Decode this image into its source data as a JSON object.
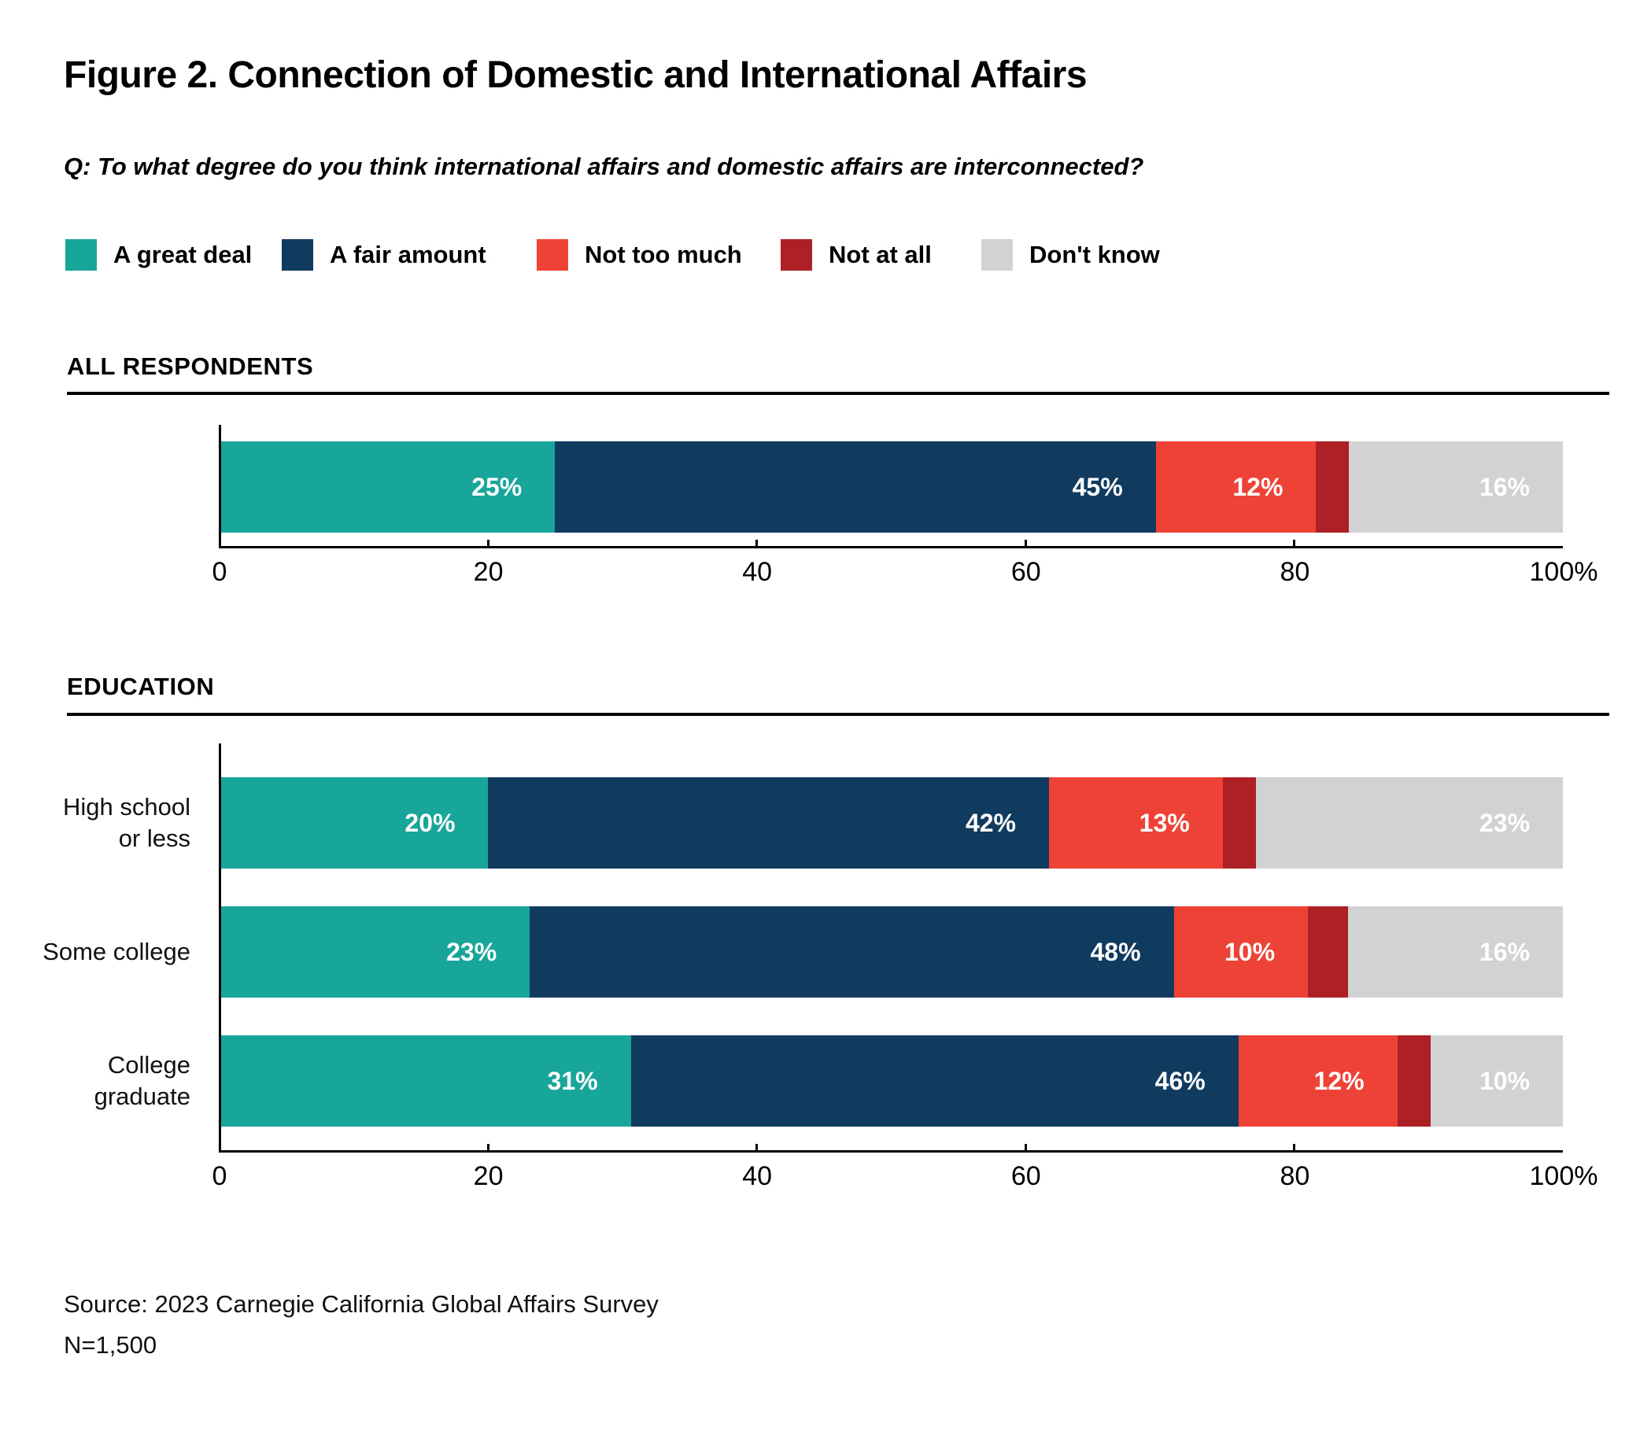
{
  "page": {
    "title": "Figure 2. Connection of Domestic and International Affairs",
    "question": "Q: To what degree do you think international affairs and domestic affairs are interconnected?",
    "source": "Source: 2023 Carnegie California Global Affairs Survey",
    "sample_size": "N=1,500"
  },
  "legend": {
    "items": [
      {
        "label": "A great deal",
        "color": "#18A69A"
      },
      {
        "label": "A fair amount",
        "color": "#113A5F"
      },
      {
        "label": "Not too much",
        "color": "#EE4237"
      },
      {
        "label": "Not at all",
        "color": "#AD2026"
      },
      {
        "label": "Don't know",
        "color": "#D1D2D3"
      }
    ]
  },
  "chart_data": [
    {
      "type": "bar",
      "orientation": "horizontal",
      "stacked": true,
      "section_header": "ALL RESPONDENTS",
      "categories": [
        []
      ],
      "series": [
        {
          "name": "A great deal",
          "color": "#18A69A",
          "values": [
            25
          ],
          "labeled": true
        },
        {
          "name": "A fair amount",
          "color": "#113A5F",
          "values": [
            45
          ],
          "labeled": true
        },
        {
          "name": "Not too much",
          "color": "#EE4237",
          "values": [
            12
          ],
          "labeled": true
        },
        {
          "name": "Not at all",
          "color": "#AD2026",
          "values": [
            2
          ],
          "labeled": false
        },
        {
          "name": "Don't know",
          "color": "#D1D2D3",
          "values": [
            16
          ],
          "labeled": true
        }
      ],
      "value_suffix": "%",
      "xlim": [
        0,
        100
      ],
      "xticks": [
        {
          "value": 0,
          "label": "0"
        },
        {
          "value": 20,
          "label": "20"
        },
        {
          "value": 40,
          "label": "40"
        },
        {
          "value": 60,
          "label": "60"
        },
        {
          "value": 80,
          "label": "80"
        },
        {
          "value": 100,
          "label": "100%"
        }
      ],
      "grid": false,
      "legend_position": "top"
    },
    {
      "type": "bar",
      "orientation": "horizontal",
      "stacked": true,
      "section_header": "EDUCATION",
      "categories": [
        [
          "High school",
          "or less"
        ],
        [
          "Some college"
        ],
        [
          "College",
          "graduate"
        ]
      ],
      "series": [
        {
          "name": "A great deal",
          "color": "#18A69A",
          "values": [
            20,
            23,
            31
          ],
          "labeled": true
        },
        {
          "name": "A fair amount",
          "color": "#113A5F",
          "values": [
            42,
            48,
            46
          ],
          "labeled": true
        },
        {
          "name": "Not too much",
          "color": "#EE4237",
          "values": [
            13,
            10,
            12
          ],
          "labeled": true
        },
        {
          "name": "Not at all",
          "color": "#AD2026",
          "values": [
            2,
            3,
            1
          ],
          "labeled": false
        },
        {
          "name": "Don't know",
          "color": "#D1D2D3",
          "values": [
            23,
            16,
            10
          ],
          "labeled": true
        }
      ],
      "value_suffix": "%",
      "xlim": [
        0,
        100
      ],
      "xticks": [
        {
          "value": 0,
          "label": "0"
        },
        {
          "value": 20,
          "label": "20"
        },
        {
          "value": 40,
          "label": "40"
        },
        {
          "value": 60,
          "label": "60"
        },
        {
          "value": 80,
          "label": "80"
        },
        {
          "value": 100,
          "label": "100%"
        }
      ],
      "grid": false,
      "legend_position": "top"
    }
  ]
}
